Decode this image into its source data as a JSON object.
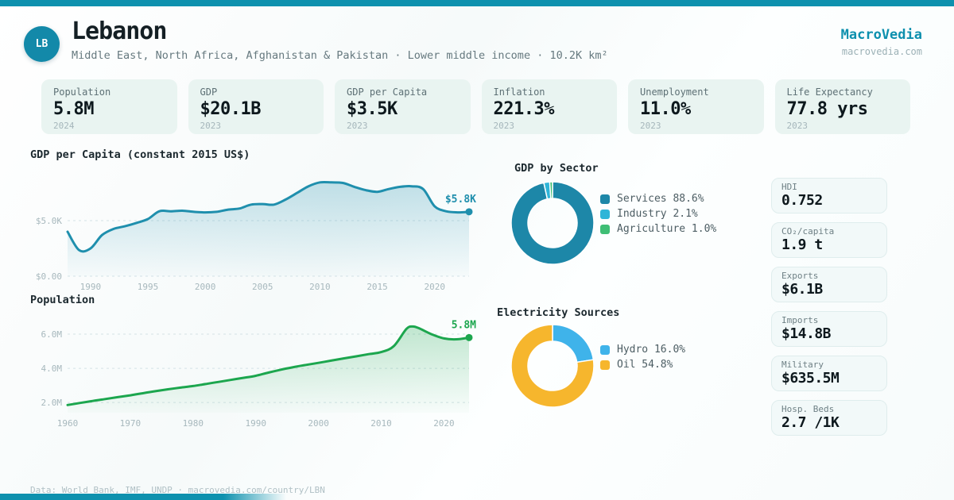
{
  "brand": {
    "name": "MacroVedia",
    "domain": "macrovedia.com",
    "color": "#0e90ae"
  },
  "header": {
    "badge": "LB",
    "title": "Lebanon",
    "subtitle": "Middle East, North Africa, Afghanistan & Pakistan · Lower middle income · 10.2K km²"
  },
  "stats": [
    {
      "label": "Population",
      "value": "5.8M",
      "year": "2024"
    },
    {
      "label": "GDP",
      "value": "$20.1B",
      "year": "2023"
    },
    {
      "label": "GDP per Capita",
      "value": "$3.5K",
      "year": "2023"
    },
    {
      "label": "Inflation",
      "value": "221.3%",
      "year": "2023"
    },
    {
      "label": "Unemployment",
      "value": "11.0%",
      "year": "2023"
    },
    {
      "label": "Life Expectancy",
      "value": "77.8 yrs",
      "year": "2023"
    }
  ],
  "info_cards": [
    {
      "label": "HDI",
      "value": "0.752"
    },
    {
      "label": "CO₂/capita",
      "value": "1.9 t"
    },
    {
      "label": "Exports",
      "value": "$6.1B"
    },
    {
      "label": "Imports",
      "value": "$14.8B"
    },
    {
      "label": "Military",
      "value": "$635.5M"
    },
    {
      "label": "Hosp. Beds",
      "value": "2.7 /1K"
    }
  ],
  "footer": {
    "text": "Data: World Bank, IMF, UNDP · macrovedia.com/country/LBN"
  },
  "chart_data": [
    {
      "type": "area",
      "title": "GDP per Capita (constant 2015 US$)",
      "unit": "thousand constant 2015 US$",
      "color": "#1f8fad",
      "grad": "gradBlue",
      "end_label": "$5.8K",
      "xlim": [
        1988,
        2023
      ],
      "ylim": [
        0,
        8.65
      ],
      "xticks": [
        1990,
        1995,
        2000,
        2005,
        2010,
        2015,
        2020
      ],
      "yticks": [
        {
          "v": 5.0,
          "label": "$5.0K"
        },
        {
          "v": 0,
          "label": "$0.00"
        }
      ],
      "x": [
        1988,
        1989,
        1990,
        1991,
        1992,
        1993,
        1994,
        1995,
        1996,
        1997,
        1998,
        1999,
        2000,
        2001,
        2002,
        2003,
        2004,
        2005,
        2006,
        2007,
        2008,
        2009,
        2010,
        2011,
        2012,
        2013,
        2014,
        2015,
        2016,
        2017,
        2018,
        2019,
        2020,
        2021,
        2022,
        2023
      ],
      "y": [
        4.0,
        2.35,
        2.5,
        3.7,
        4.25,
        4.5,
        4.8,
        5.15,
        5.85,
        5.85,
        5.9,
        5.8,
        5.75,
        5.8,
        6.0,
        6.1,
        6.45,
        6.5,
        6.45,
        6.9,
        7.5,
        8.1,
        8.45,
        8.45,
        8.4,
        8.05,
        7.75,
        7.6,
        7.85,
        8.05,
        8.1,
        7.85,
        6.3,
        5.85,
        5.75,
        5.8
      ]
    },
    {
      "type": "area",
      "title": "Population",
      "unit": "million people",
      "color": "#1ca64e",
      "grad": "gradGreen",
      "end_label": "5.8M",
      "xlim": [
        1960,
        2024
      ],
      "ylim": [
        1.4,
        6.7
      ],
      "xticks": [
        1960,
        1970,
        1980,
        1990,
        2000,
        2010,
        2020
      ],
      "yticks": [
        {
          "v": 6.0,
          "label": "6.0M"
        },
        {
          "v": 4.0,
          "label": "4.0M"
        },
        {
          "v": 2.0,
          "label": "2.0M"
        }
      ],
      "x": [
        1960,
        1962,
        1964,
        1966,
        1968,
        1970,
        1972,
        1974,
        1976,
        1978,
        1980,
        1982,
        1984,
        1986,
        1988,
        1990,
        1992,
        1994,
        1996,
        1998,
        2000,
        2002,
        2004,
        2006,
        2008,
        2010,
        2012,
        2014,
        2015,
        2016,
        2018,
        2020,
        2022,
        2024
      ],
      "y": [
        1.85,
        1.97,
        2.09,
        2.2,
        2.31,
        2.42,
        2.54,
        2.66,
        2.77,
        2.87,
        2.96,
        3.08,
        3.2,
        3.32,
        3.44,
        3.56,
        3.75,
        3.92,
        4.07,
        4.2,
        4.32,
        4.45,
        4.58,
        4.7,
        4.83,
        4.95,
        5.3,
        6.3,
        6.45,
        6.35,
        6.0,
        5.75,
        5.7,
        5.8
      ]
    },
    {
      "type": "donut",
      "title": "GDP by Sector",
      "slices": [
        {
          "label": "Services",
          "pct": 88.6,
          "color": "#1d87a8"
        },
        {
          "label": "Industry",
          "pct": 2.1,
          "color": "#2fb5d8"
        },
        {
          "label": "Agriculture",
          "pct": 1.0,
          "color": "#3fbe75"
        }
      ]
    },
    {
      "type": "donut",
      "title": "Electricity Sources",
      "slices": [
        {
          "label": "Hydro",
          "pct": 16.0,
          "color": "#3fb3ea"
        },
        {
          "label": "Oil",
          "pct": 54.8,
          "color": "#f6b62d"
        }
      ]
    }
  ]
}
